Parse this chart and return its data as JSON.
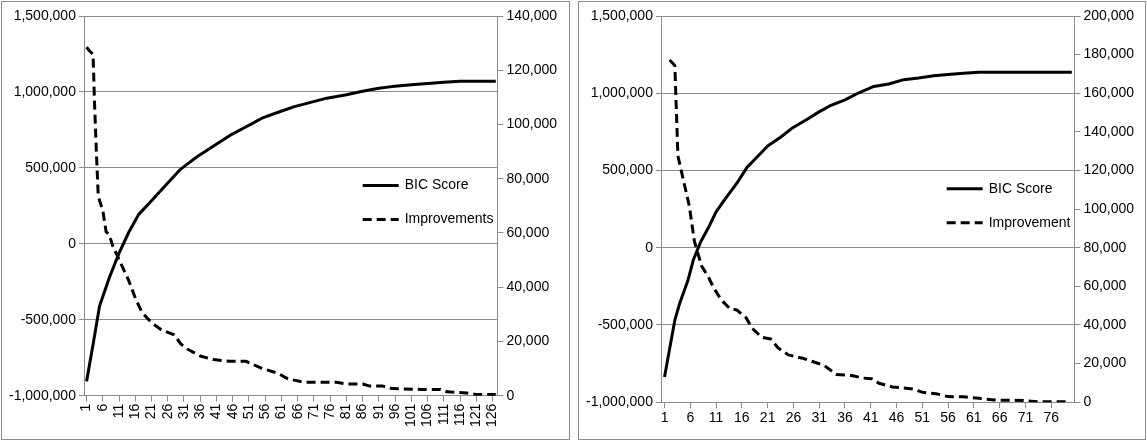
{
  "chart_data": [
    {
      "type": "line",
      "xlim": [
        0.5,
        127.5
      ],
      "xticks": [
        1,
        6,
        11,
        16,
        21,
        26,
        31,
        36,
        41,
        46,
        51,
        56,
        61,
        66,
        71,
        76,
        81,
        86,
        91,
        96,
        101,
        106,
        111,
        116,
        121,
        126
      ],
      "ylim": [
        -1000000,
        1500000
      ],
      "yticks": [
        {
          "value": -1000000,
          "label": "-1,000,000"
        },
        {
          "value": -500000,
          "label": "-500,000"
        },
        0,
        {
          "value": 500000,
          "label": "500,000"
        },
        {
          "value": 1000000,
          "label": "1,000,000"
        },
        {
          "value": 1500000,
          "label": "1,500,000"
        }
      ],
      "y2lim": [
        0,
        140000
      ],
      "y2ticks": [
        0,
        {
          "value": 20000,
          "label": "20,000"
        },
        {
          "value": 40000,
          "label": "40,000"
        },
        {
          "value": 60000,
          "label": "60,000"
        },
        {
          "value": 80000,
          "label": "80,000"
        },
        {
          "value": 100000,
          "label": "100,000"
        },
        {
          "value": 120000,
          "label": "120,000"
        },
        {
          "value": 140000,
          "label": "140,000"
        }
      ],
      "grid": "y",
      "legend": "right",
      "marker": "none",
      "series": [
        {
          "name": "BIC Score",
          "color": "#000000",
          "line_style": "solid",
          "x": [
            1,
            3,
            5,
            8,
            11,
            14,
            17,
            20,
            25,
            30,
            35,
            40,
            45,
            50,
            55,
            60,
            65,
            70,
            75,
            81,
            86,
            91,
            95,
            101,
            106,
            111,
            116,
            122,
            127
          ],
          "values": [
            -906000,
            -663000,
            -409000,
            -224000,
            -62000,
            76000,
            192000,
            261000,
            377000,
            492000,
            573000,
            642000,
            712000,
            769000,
            827000,
            866000,
            903000,
            931000,
            959000,
            982000,
            1005000,
            1024000,
            1035000,
            1047000,
            1056000,
            1063000,
            1070000,
            1070000,
            1070000
          ]
        },
        {
          "name": "Improvements",
          "color": "#000000",
          "line_style": "dashed",
          "axis": "y2",
          "x": [
            1,
            2,
            3,
            3.4,
            4,
            4.6,
            6,
            7,
            8,
            9,
            11.5,
            14,
            16,
            18,
            21,
            24,
            28,
            30,
            32,
            36,
            40,
            45,
            50,
            55,
            60,
            63,
            68,
            78,
            81,
            86,
            88,
            92,
            95,
            104,
            110,
            112,
            118,
            121,
            127
          ],
          "values": [
            128500,
            127000,
            125900,
            109700,
            90300,
            73500,
            68300,
            60500,
            59300,
            55400,
            48900,
            42400,
            36000,
            30800,
            26900,
            24300,
            22400,
            19100,
            17200,
            14600,
            13300,
            12700,
            12700,
            10100,
            8200,
            6200,
            4900,
            4900,
            4300,
            4300,
            3600,
            3600,
            2600,
            2300,
            2300,
            1400,
            1000,
            400,
            400
          ]
        }
      ]
    },
    {
      "type": "line",
      "xlim": [
        0.5,
        80.5
      ],
      "xticks": [
        1,
        6,
        11,
        16,
        21,
        26,
        31,
        36,
        41,
        46,
        51,
        56,
        61,
        66,
        71,
        76
      ],
      "ylim": [
        -1000000,
        1500000
      ],
      "yticks": [
        {
          "value": -1000000,
          "label": "-1,000,000"
        },
        {
          "value": -500000,
          "label": "-500,000"
        },
        0,
        {
          "value": 500000,
          "label": "500,000"
        },
        {
          "value": 1000000,
          "label": "1,000,000"
        },
        {
          "value": 1500000,
          "label": "1,500,000"
        }
      ],
      "y2lim": [
        0,
        200000
      ],
      "y2ticks": [
        0,
        {
          "value": 20000,
          "label": "20,000"
        },
        {
          "value": 40000,
          "label": "40,000"
        },
        {
          "value": 60000,
          "label": "60,000"
        },
        {
          "value": 80000,
          "label": "80,000"
        },
        {
          "value": 100000,
          "label": "100,000"
        },
        {
          "value": 120000,
          "label": "120,000"
        },
        {
          "value": 140000,
          "label": "140,000"
        },
        {
          "value": 160000,
          "label": "160,000"
        },
        {
          "value": 180000,
          "label": "180,000"
        },
        {
          "value": 200000,
          "label": "200,000"
        }
      ],
      "grid": "y",
      "legend": "right",
      "marker": "none",
      "series": [
        {
          "name": "BIC Score",
          "color": "#000000",
          "line_style": "solid",
          "x": [
            1,
            2,
            3,
            4,
            5.5,
            6.6,
            8,
            9.5,
            11,
            12.7,
            15,
            17,
            19,
            21,
            23.5,
            25.7,
            28.6,
            30.8,
            33.3,
            36,
            38.7,
            41.6,
            44.5,
            47.4,
            50.3,
            53.2,
            56,
            59,
            62,
            65,
            80
          ],
          "values": [
            -837000,
            -653000,
            -469000,
            -354000,
            -216000,
            -78000,
            37000,
            129000,
            232000,
            313000,
            416000,
            520000,
            589000,
            658000,
            715000,
            773000,
            830000,
            876000,
            922000,
            957000,
            1003000,
            1044000,
            1060000,
            1088000,
            1099000,
            1113000,
            1122000,
            1129000,
            1136000,
            1136000,
            1136000
          ]
        },
        {
          "name": "Improvement",
          "color": "#000000",
          "line_style": "dashed",
          "axis": "y2",
          "x": [
            2,
            3,
            3.6,
            4.7,
            5.8,
            6.8,
            8.2,
            9.5,
            10.5,
            12,
            13.7,
            15,
            16.8,
            18,
            19.8,
            21.6,
            23,
            25,
            28,
            30,
            32,
            34.3,
            37.3,
            39.5,
            41.2,
            42.6,
            45.2,
            48.8,
            51,
            54,
            56,
            59,
            62,
            65,
            70.6,
            73.5,
            79
          ],
          "values": [
            177200,
            174400,
            127500,
            114600,
            101700,
            83300,
            70500,
            64900,
            59400,
            53000,
            48400,
            47800,
            43800,
            38300,
            33700,
            32700,
            28200,
            24500,
            22600,
            20800,
            19000,
            14400,
            13800,
            12500,
            12100,
            9800,
            7900,
            7000,
            5200,
            4200,
            2900,
            2800,
            2000,
            1100,
            900,
            200,
            200
          ]
        }
      ]
    }
  ]
}
